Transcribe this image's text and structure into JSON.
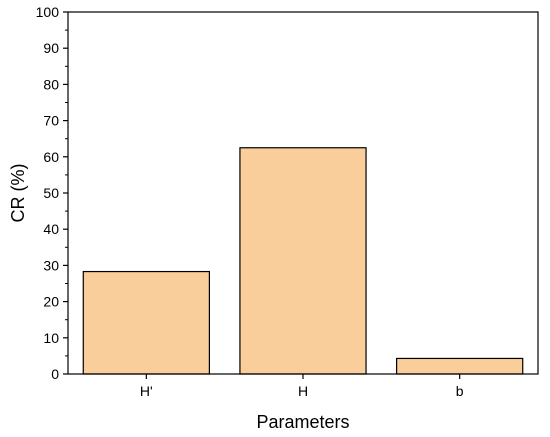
{
  "chart_data": {
    "type": "bar",
    "title": "",
    "xlabel": "Parameters",
    "ylabel": "CR (%)",
    "categories": [
      "H'",
      "H",
      "b"
    ],
    "values": [
      28.3,
      62.5,
      4.3
    ],
    "ylim": [
      0,
      100
    ],
    "yticks": [
      0,
      10,
      20,
      30,
      40,
      50,
      60,
      70,
      80,
      90,
      100
    ],
    "grid": false,
    "legend": "none",
    "bar_color": "#FACE9B",
    "bar_edge_color": "#000000"
  }
}
